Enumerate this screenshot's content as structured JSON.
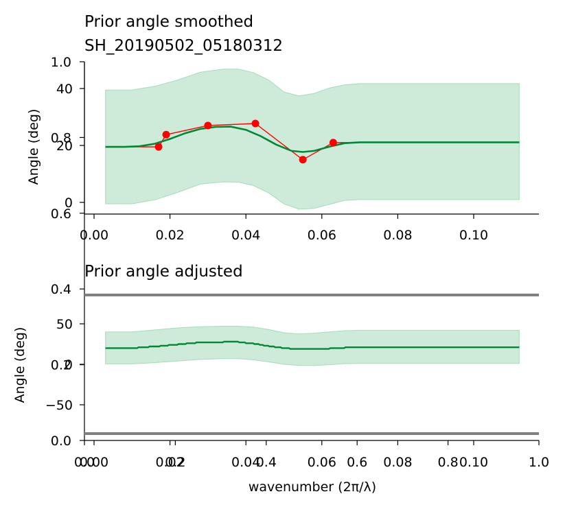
{
  "figure": {
    "bg_axes": {
      "xticks": [
        "0.0",
        "0.2",
        "0.4",
        "0.6",
        "0.8",
        "1.0"
      ],
      "yticks": [
        "0.0",
        "0.2",
        "0.4",
        "0.6",
        "0.8",
        "1.0"
      ]
    },
    "xlabel": "wavenumber (2π/λ)"
  },
  "chart_data": [
    {
      "type": "line",
      "title": "Prior angle smoothed",
      "subtitle": "SH_20190502_05180312",
      "xlabel": "",
      "ylabel": "Angle (deg)",
      "xlim": [
        -0.002,
        0.117
      ],
      "ylim": [
        -2,
        45
      ],
      "xticks": [
        "0.00",
        "0.02",
        "0.04",
        "0.06",
        "0.08",
        "0.10"
      ],
      "yticks": [
        "0",
        "20",
        "40"
      ],
      "colors": {
        "smooth": "#008837",
        "band": "#a6dbba",
        "raw": "#ff0000"
      },
      "series": [
        {
          "kind": "raw",
          "x": [
            0.003,
            0.017,
            0.019,
            0.03,
            0.0425,
            0.055,
            0.063,
            0.112
          ],
          "y": [
            19.5,
            19.5,
            23.8,
            27.0,
            27.7,
            15.0,
            21.0,
            21.0
          ]
        },
        {
          "kind": "smoothed",
          "x": [
            0.003,
            0.008,
            0.012,
            0.016,
            0.02,
            0.024,
            0.028,
            0.032,
            0.036,
            0.04,
            0.044,
            0.048,
            0.052,
            0.055,
            0.058,
            0.062,
            0.066,
            0.07,
            0.08,
            0.09,
            0.1,
            0.112
          ],
          "y": [
            19.5,
            19.5,
            19.7,
            20.6,
            22.3,
            24.3,
            25.8,
            26.5,
            26.6,
            25.5,
            23.2,
            20.3,
            18.1,
            17.7,
            18.1,
            19.6,
            20.8,
            21.1,
            21.1,
            21.1,
            21.1,
            21.1
          ]
        }
      ],
      "band": {
        "x": [
          0.003,
          0.01,
          0.016,
          0.022,
          0.028,
          0.034,
          0.038,
          0.042,
          0.046,
          0.05,
          0.054,
          0.058,
          0.062,
          0.066,
          0.07,
          0.08,
          0.1,
          0.112
        ],
        "upper": [
          39.5,
          39.5,
          40.8,
          43.0,
          45.7,
          46.8,
          46.8,
          45.6,
          43.0,
          38.8,
          37.4,
          38.3,
          40.2,
          41.3,
          41.7,
          41.7,
          41.7,
          41.7
        ],
        "lower": [
          -0.5,
          -0.5,
          0.9,
          3.5,
          6.4,
          7.2,
          7.1,
          5.9,
          3.3,
          -0.5,
          -2.4,
          -2.1,
          -0.7,
          0.7,
          1.0,
          1.0,
          1.0,
          1.0
        ]
      }
    },
    {
      "type": "line",
      "title": "Prior angle adjusted",
      "xlabel": "wavenumber (2π/λ)",
      "ylabel": "Angle (deg)",
      "xlim": [
        -0.002,
        0.117
      ],
      "ylim": [
        -95,
        95
      ],
      "xticks": [
        "0.00",
        "0.02",
        "0.04",
        "0.06",
        "0.08",
        "0.10"
      ],
      "yticks": [
        "−50",
        "0",
        "50"
      ],
      "hlines": [
        85,
        -85
      ],
      "colors": {
        "smooth": "#008837",
        "band": "#a6dbba",
        "hline": "#808080"
      },
      "series": [
        {
          "kind": "adjusted",
          "x": [
            0.003,
            0.01,
            0.016,
            0.022,
            0.028,
            0.034,
            0.038,
            0.042,
            0.046,
            0.05,
            0.054,
            0.058,
            0.062,
            0.066,
            0.07,
            0.08,
            0.1,
            0.112
          ],
          "y": [
            20.0,
            20.0,
            22.0,
            24.5,
            27.0,
            27.5,
            27.5,
            25.5,
            22.5,
            20.0,
            18.5,
            18.5,
            19.5,
            20.5,
            21.0,
            21.0,
            21.0,
            21.0
          ]
        }
      ],
      "band": {
        "x": [
          0.003,
          0.01,
          0.016,
          0.022,
          0.028,
          0.034,
          0.038,
          0.042,
          0.046,
          0.05,
          0.054,
          0.058,
          0.062,
          0.066,
          0.07,
          0.08,
          0.1,
          0.112
        ],
        "upper": [
          40.0,
          40.0,
          42.5,
          45.0,
          46.5,
          47.0,
          47.0,
          46.0,
          43.0,
          39.0,
          37.5,
          38.5,
          40.0,
          41.5,
          42.0,
          42.0,
          42.0,
          42.0
        ],
        "lower": [
          0.5,
          0.5,
          2.0,
          4.0,
          6.0,
          7.0,
          7.0,
          5.5,
          3.0,
          0.0,
          -1.5,
          -1.5,
          -0.5,
          0.8,
          1.0,
          1.0,
          1.0,
          1.0
        ]
      }
    }
  ]
}
